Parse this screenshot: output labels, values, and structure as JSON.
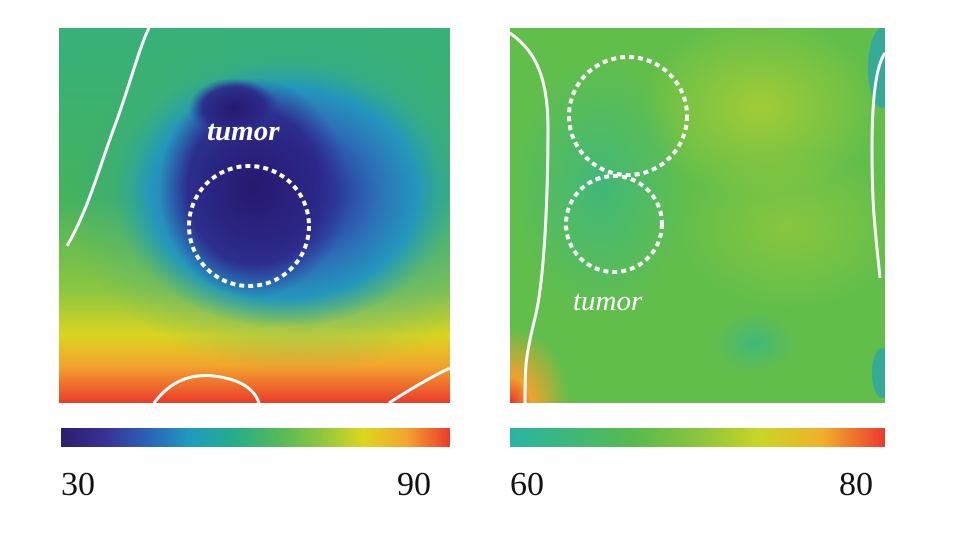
{
  "left_panel": {
    "label": "tumor",
    "colorbar": {
      "min": "30",
      "max": "90"
    },
    "colormap": [
      "#2b1e6e",
      "#3a2f95",
      "#2a62b8",
      "#1f9bc1",
      "#25ad8a",
      "#52b95a",
      "#8cc640",
      "#dcd71f",
      "#f2a52d",
      "#eb3a2c"
    ]
  },
  "right_panel": {
    "label": "tumor",
    "colorbar": {
      "min": "60",
      "max": "80"
    },
    "colormap": [
      "#28b3a4",
      "#3fb878",
      "#57bb4d",
      "#8ac43e",
      "#cad526",
      "#f0b02a",
      "#eb3a2c"
    ]
  },
  "colors": {
    "outline": "#ffffff"
  }
}
